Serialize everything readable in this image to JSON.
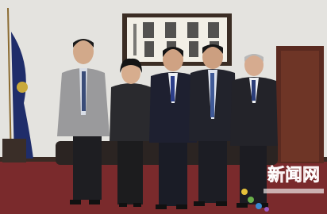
{
  "watermark": {
    "title": "新闻网"
  }
}
